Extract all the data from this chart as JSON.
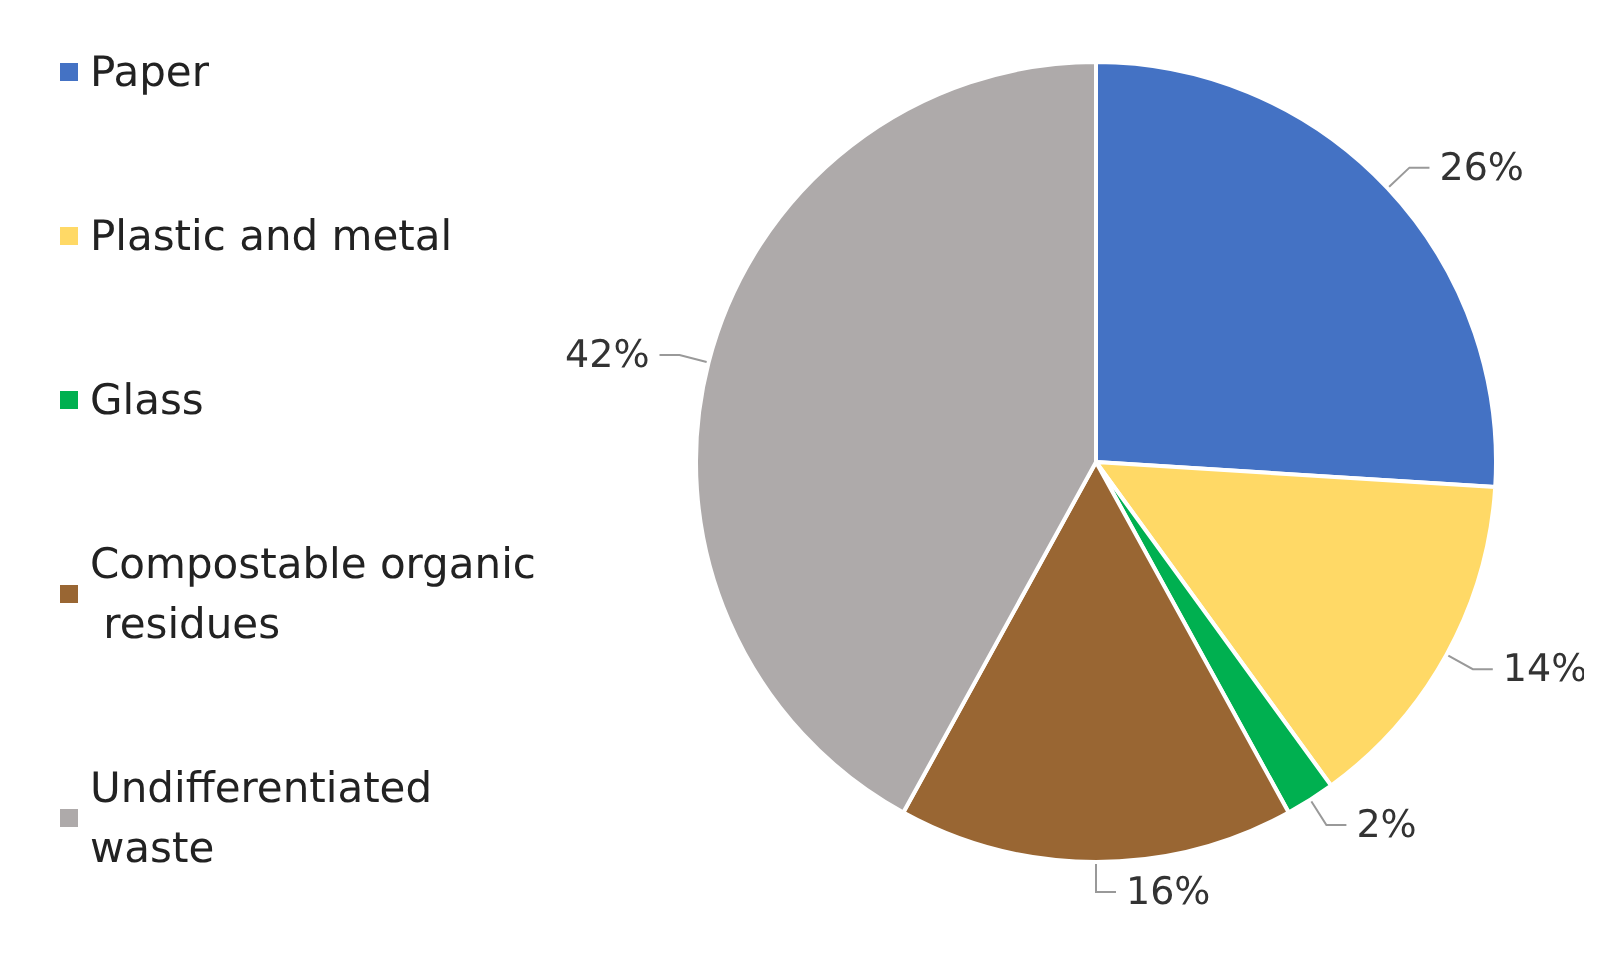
{
  "chart_data": {
    "type": "pie",
    "categories": [
      "Paper",
      "Plastic and metal",
      "Glass",
      "Compostable organic residues",
      "Undifferentiated waste"
    ],
    "values": [
      26,
      14,
      2,
      16,
      42
    ],
    "colors": [
      "#4472c4",
      "#ffd966",
      "#00b050",
      "#996633",
      "#aeaaaa"
    ],
    "value_labels": [
      "26%",
      "14%",
      "2%",
      "16%",
      "42%"
    ],
    "legend": "left"
  }
}
